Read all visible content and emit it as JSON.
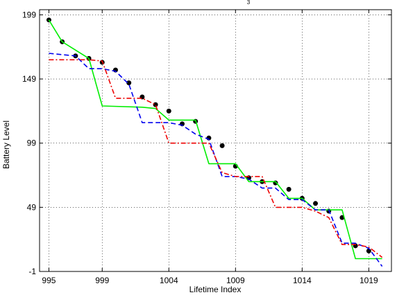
{
  "chart_data": {
    "type": "line",
    "title": "3",
    "xlabel": "Lifetime Index",
    "ylabel": "Battery Level",
    "xlim": [
      994.3,
      1020.7
    ],
    "ylim": [
      -1,
      203
    ],
    "xticks": [
      995,
      999,
      1004,
      1009,
      1014,
      1019
    ],
    "yticks": [
      -1,
      49,
      99,
      149,
      199
    ],
    "grid": true,
    "series": [
      {
        "style": "markers",
        "color": "#000000",
        "x": [
          995,
          996,
          997,
          998,
          999,
          1000,
          1001,
          1002,
          1003,
          1004,
          1005,
          1006,
          1007,
          1008,
          1009,
          1010,
          1011,
          1012,
          1013,
          1014,
          1015,
          1016,
          1017,
          1018,
          1019
        ],
        "y": [
          195,
          178,
          167,
          165,
          162,
          156,
          146,
          135,
          129,
          124,
          114,
          116,
          103,
          97,
          81,
          72,
          69,
          68,
          63,
          56,
          52,
          46,
          41,
          19,
          15
        ]
      },
      {
        "style": "solid",
        "color": "#00ee00",
        "x": [
          995,
          996,
          998,
          999,
          1002,
          1003,
          1004,
          1005,
          1006,
          1007,
          1008,
          1009,
          1010,
          1011,
          1012,
          1013,
          1014,
          1015,
          1016,
          1017,
          1018,
          1019,
          1020
        ],
        "y": [
          195,
          178,
          165,
          128,
          127,
          126,
          117,
          117,
          117,
          83,
          83,
          83,
          69,
          69,
          69,
          56,
          56,
          47,
          47,
          47,
          9,
          9,
          9
        ]
      },
      {
        "style": "dashed",
        "color": "#0000ee",
        "x": [
          995,
          996,
          997,
          998,
          999,
          1000,
          1001,
          1002,
          1003,
          1004,
          1005,
          1006,
          1007,
          1008,
          1009,
          1010,
          1011,
          1012,
          1013,
          1014,
          1015,
          1016,
          1017,
          1018,
          1019,
          1020
        ],
        "y": [
          169,
          168,
          167,
          157,
          157,
          155,
          145,
          115,
          115,
          115,
          113,
          106,
          102,
          73,
          73,
          71,
          64,
          64,
          55,
          55,
          47,
          47,
          21,
          21,
          17,
          3
        ]
      },
      {
        "style": "dashdot",
        "color": "#ee0000",
        "x": [
          995,
          996,
          997,
          998,
          999,
          1000,
          1001,
          1002,
          1003,
          1004,
          1005,
          1006,
          1007,
          1008,
          1009,
          1010,
          1011,
          1012,
          1013,
          1014,
          1015,
          1016,
          1017,
          1018,
          1019,
          1020
        ],
        "y": [
          164,
          164,
          164,
          164,
          163,
          134,
          134,
          134,
          129,
          99,
          99,
          99,
          99,
          76,
          73,
          73,
          73,
          49,
          49,
          49,
          46,
          41,
          20,
          20,
          18,
          10
        ]
      }
    ]
  }
}
